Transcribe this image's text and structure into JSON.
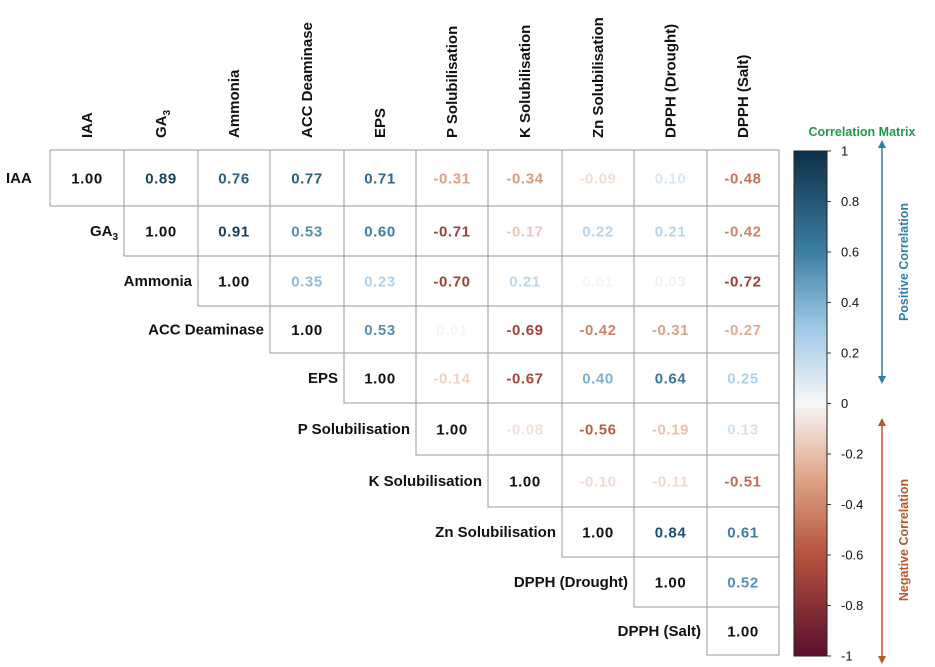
{
  "chart_data": {
    "type": "heatmap",
    "title": "Correlation Matrix",
    "variables": [
      {
        "name": "IAA",
        "base": "IAA",
        "sub": ""
      },
      {
        "name": "GA3",
        "base": "GA",
        "sub": "3"
      },
      {
        "name": "Ammonia",
        "base": "Ammonia",
        "sub": ""
      },
      {
        "name": "ACC Deaminase",
        "base": "ACC Deaminase",
        "sub": ""
      },
      {
        "name": "EPS",
        "base": "EPS",
        "sub": ""
      },
      {
        "name": "P Solubilisation",
        "base": "P Solubilisation",
        "sub": ""
      },
      {
        "name": "K Solubilisation",
        "base": "K Solubilisation",
        "sub": ""
      },
      {
        "name": "Zn Solubilisation",
        "base": "Zn Solubilisation",
        "sub": ""
      },
      {
        "name": "DPPH (Drought)",
        "base": "DPPH (Drought)",
        "sub": ""
      },
      {
        "name": "DPPH (Salt)",
        "base": "DPPH (Salt)",
        "sub": ""
      }
    ],
    "matrix": [
      [
        1.0,
        0.89,
        0.76,
        0.77,
        0.71,
        -0.31,
        -0.34,
        -0.09,
        0.1,
        -0.48
      ],
      [
        null,
        1.0,
        0.91,
        0.53,
        0.6,
        -0.71,
        -0.17,
        0.22,
        0.21,
        -0.42
      ],
      [
        null,
        null,
        1.0,
        0.35,
        0.23,
        -0.7,
        0.21,
        0.01,
        0.03,
        -0.72
      ],
      [
        null,
        null,
        null,
        1.0,
        0.53,
        0.01,
        -0.69,
        -0.42,
        -0.31,
        -0.27
      ],
      [
        null,
        null,
        null,
        null,
        1.0,
        -0.14,
        -0.67,
        0.4,
        0.64,
        0.25
      ],
      [
        null,
        null,
        null,
        null,
        null,
        1.0,
        -0.08,
        -0.56,
        -0.19,
        0.13
      ],
      [
        null,
        null,
        null,
        null,
        null,
        null,
        1.0,
        -0.1,
        -0.11,
        -0.51
      ],
      [
        null,
        null,
        null,
        null,
        null,
        null,
        null,
        1.0,
        0.84,
        0.61
      ],
      [
        null,
        null,
        null,
        null,
        null,
        null,
        null,
        null,
        1.0,
        0.52
      ],
      [
        null,
        null,
        null,
        null,
        null,
        null,
        null,
        null,
        null,
        1.0
      ]
    ],
    "colorbar": {
      "range": [
        -1,
        1
      ],
      "ticks": [
        {
          "value": 1,
          "label": "1"
        },
        {
          "value": 0.8,
          "label": "0.8"
        },
        {
          "value": 0.6,
          "label": "0.6"
        },
        {
          "value": 0.4,
          "label": "0.4"
        },
        {
          "value": 0.2,
          "label": "0.2"
        },
        {
          "value": 0,
          "label": "0"
        },
        {
          "value": -0.2,
          "label": "-0.2"
        },
        {
          "value": -0.4,
          "label": "-0.4"
        },
        {
          "value": -0.6,
          "label": "-0.6"
        },
        {
          "value": -0.8,
          "label": "-0.8"
        },
        {
          "value": -1,
          "label": "-1"
        }
      ],
      "color_stops": [
        {
          "value": -1,
          "color": "#5a0f2e"
        },
        {
          "value": -0.6,
          "color": "#b5523e"
        },
        {
          "value": -0.3,
          "color": "#e0a385"
        },
        {
          "value": 0,
          "color": "#f7f7f7"
        },
        {
          "value": 0.3,
          "color": "#9fc8e6"
        },
        {
          "value": 0.6,
          "color": "#3b7fa3"
        },
        {
          "value": 1,
          "color": "#0e2f47"
        }
      ]
    },
    "annotations": {
      "positive": "Positive Correlation",
      "negative": "Negative Correlation"
    },
    "colors": {
      "title": "#1f9a4a",
      "positive": "#2e7fa8",
      "negative": "#b8562c"
    }
  }
}
